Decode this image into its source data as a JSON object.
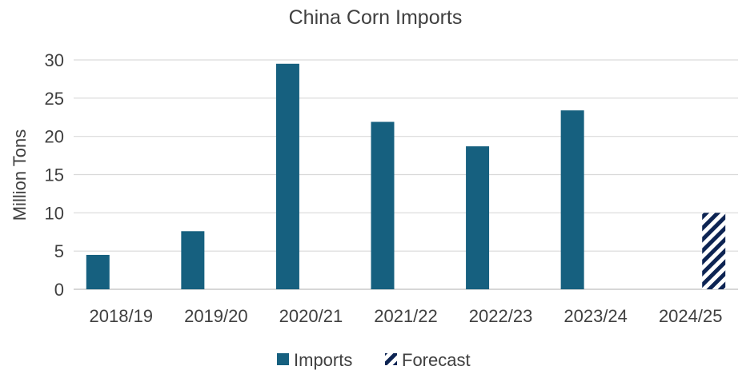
{
  "chart_data": {
    "type": "bar",
    "title": "China Corn Imports",
    "xlabel": "",
    "ylabel": "Million Tons",
    "ylim": [
      0,
      30
    ],
    "yticks": [
      0,
      5,
      10,
      15,
      20,
      25,
      30
    ],
    "grid": true,
    "legend_position": "bottom",
    "categories": [
      "2018/19",
      "2019/20",
      "2020/21",
      "2021/22",
      "2022/23",
      "2023/24",
      "2024/25"
    ],
    "series": [
      {
        "name": "Imports",
        "color": "#16607f",
        "pattern": "solid",
        "values": [
          4.5,
          7.6,
          29.5,
          21.9,
          18.7,
          23.4,
          null
        ]
      },
      {
        "name": "Forecast",
        "color": "#0d2453",
        "pattern": "diagonal-stripes",
        "values": [
          null,
          null,
          null,
          null,
          null,
          null,
          10.0
        ]
      }
    ]
  }
}
